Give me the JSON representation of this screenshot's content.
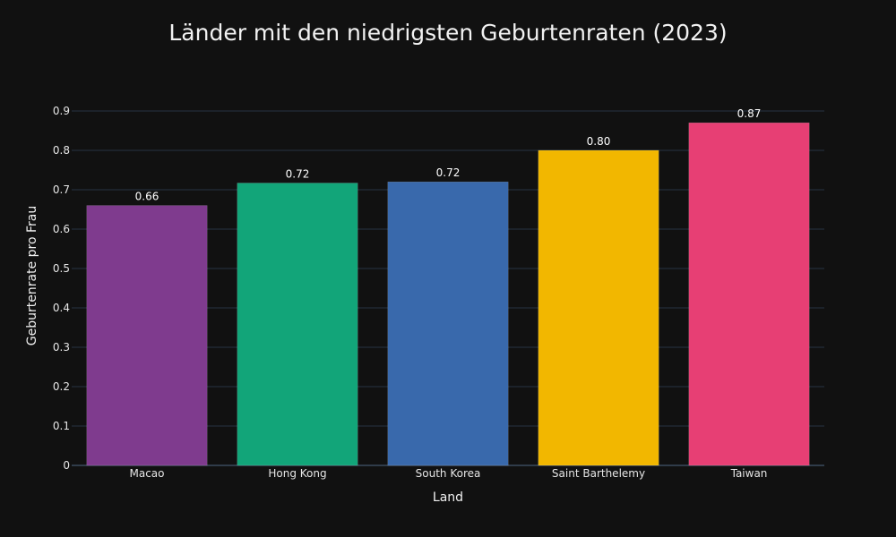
{
  "chart_data": {
    "type": "bar",
    "title": "Länder mit den niedrigsten Geburtenraten (2023)",
    "xlabel": "Land",
    "ylabel": "Geburtenrate pro Frau",
    "categories": [
      "Macao",
      "Hong Kong",
      "South Korea",
      "Saint Barthelemy",
      "Taiwan"
    ],
    "values": [
      0.66,
      0.717,
      0.72,
      0.8,
      0.87
    ],
    "data_labels": [
      "0.66",
      "0.72",
      "0.72",
      "0.80",
      "0.87"
    ],
    "colors": [
      "#7f3b8e",
      "#12a579",
      "#3969ac",
      "#f2b700",
      "#e73f74"
    ],
    "ylim": [
      0,
      0.9
    ],
    "yticks": [
      "0",
      "0.1",
      "0.2",
      "0.3",
      "0.4",
      "0.5",
      "0.6",
      "0.7",
      "0.8",
      "0.9"
    ],
    "grid": true,
    "background": "#111111",
    "gridcolor": "#283442"
  }
}
